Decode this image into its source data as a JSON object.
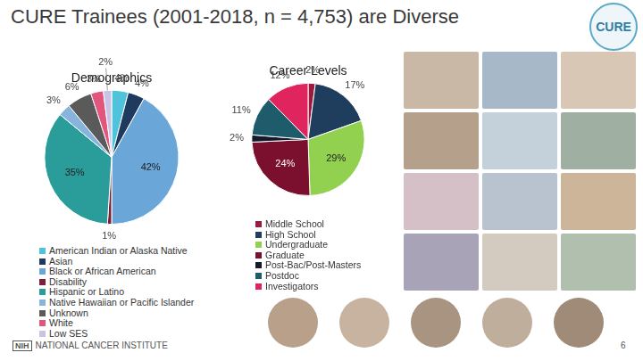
{
  "title": "CURE Trainees (2001-2018, n = 4,753) are Diverse",
  "logo": "CURE",
  "footer": {
    "agency_abbr": "NIH",
    "agency": "NATIONAL CANCER INSTITUTE"
  },
  "page_number": 6,
  "chart_data": [
    {
      "type": "pie",
      "title": "Demographics",
      "categories": [
        "American Indian or Alaska Native",
        "Asian",
        "Black or African American",
        "Disability",
        "Hispanic or Latino",
        "Native Hawaiian or Pacific Islander",
        "Unknown",
        "White",
        "Low SES"
      ],
      "values": [
        4,
        4,
        42,
        1,
        35,
        3,
        6,
        3,
        2
      ],
      "value_labels": [
        "4%",
        "4%",
        "42%",
        "1%",
        "35%",
        "3%",
        "6%",
        "3%",
        "2%"
      ],
      "colors": [
        "#4fc3dc",
        "#1f3a5f",
        "#6aa6d8",
        "#7b1f3a",
        "#2a9d9a",
        "#86b4dc",
        "#5a5a5a",
        "#e2557d",
        "#c9c3e6"
      ],
      "data_labels": true,
      "legend": "bottom"
    },
    {
      "type": "pie",
      "title": "Career Levels",
      "categories": [
        "Middle School",
        "High School",
        "Undergraduate",
        "Graduate",
        "Post-Bac/Post-Masters",
        "Postdoc",
        "Investigators"
      ],
      "values": [
        2,
        17,
        29,
        24,
        2,
        11,
        12
      ],
      "value_labels": [
        "2%",
        "17%",
        "29%",
        "24%",
        "2%",
        "11%",
        "12%"
      ],
      "colors": [
        "#9b1b3f",
        "#1f3d5c",
        "#92d050",
        "#7a0f2e",
        "#141a2b",
        "#1f5c6b",
        "#e0245e"
      ],
      "data_labels": true,
      "legend": "bottom"
    }
  ]
}
